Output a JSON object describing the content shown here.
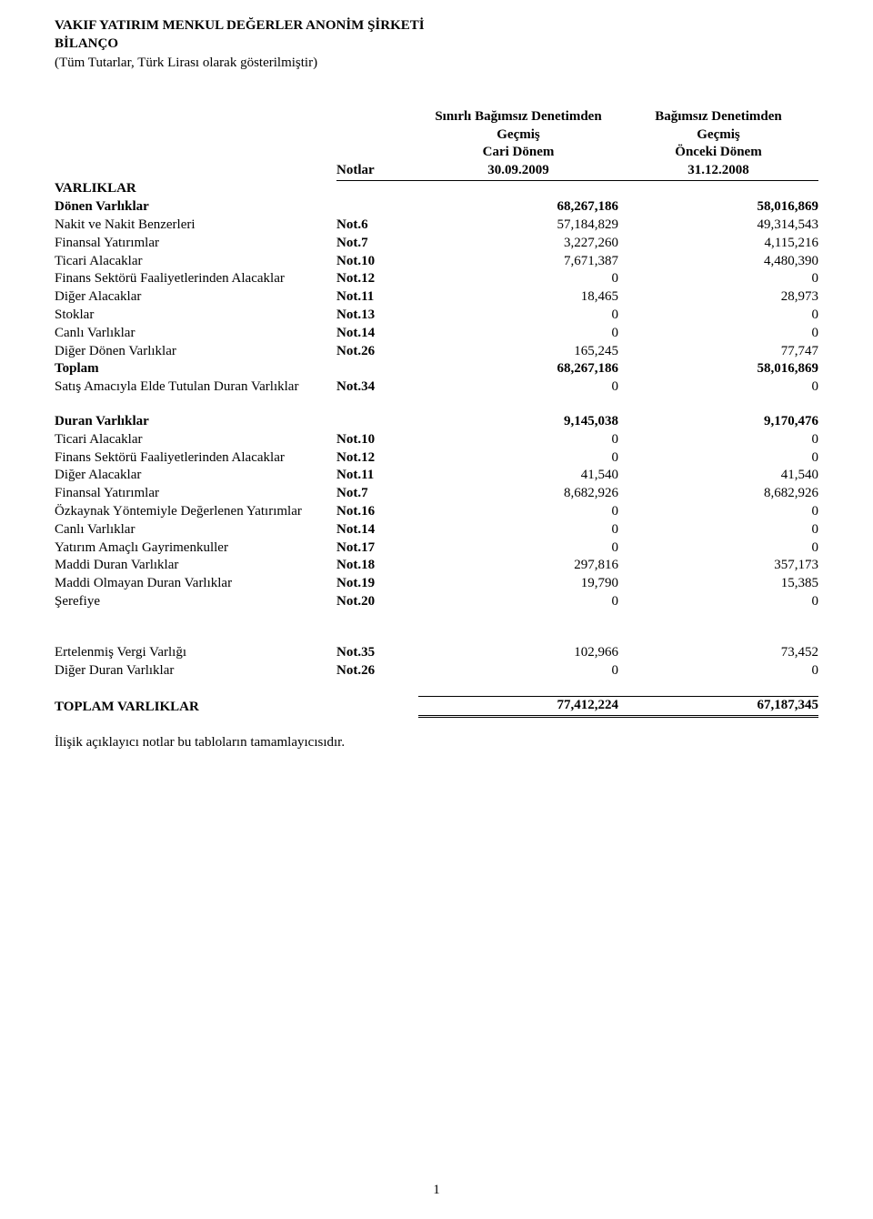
{
  "header": {
    "company": "VAKIF YATIRIM MENKUL DEĞERLER ANONİM ŞİRKETİ",
    "report": "BİLANÇO",
    "note": "(Tüm Tutarlar, Türk Lirası olarak gösterilmiştir)"
  },
  "columns": {
    "notes_label": "Notlar",
    "col1_l1": "Sınırlı Bağımsız Denetimden",
    "col1_l2": "Geçmiş",
    "col1_l3": "Cari Dönem",
    "col1_l4": "30.09.2009",
    "col2_l1": "Bağımsız Denetimden",
    "col2_l2": "Geçmiş",
    "col2_l3": "Önceki Dönem",
    "col2_l4": "31.12.2008"
  },
  "section_varliklar": "VARLIKLAR",
  "donen": {
    "title": "Dönen Varlıklar",
    "title_v1": "68,267,186",
    "title_v2": "58,016,869",
    "rows": [
      {
        "d": "Nakit ve Nakit Benzerleri",
        "n": "Not.6",
        "v1": "57,184,829",
        "v2": "49,314,543"
      },
      {
        "d": "Finansal Yatırımlar",
        "n": "Not.7",
        "v1": "3,227,260",
        "v2": "4,115,216"
      },
      {
        "d": "Ticari Alacaklar",
        "n": "Not.10",
        "v1": "7,671,387",
        "v2": "4,480,390"
      },
      {
        "d": "Finans Sektörü Faaliyetlerinden Alacaklar",
        "n": "Not.12",
        "v1": "0",
        "v2": "0"
      },
      {
        "d": "Diğer Alacaklar",
        "n": "Not.11",
        "v1": "18,465",
        "v2": "28,973"
      },
      {
        "d": "Stoklar",
        "n": "Not.13",
        "v1": "0",
        "v2": "0"
      },
      {
        "d": "Canlı Varlıklar",
        "n": "Not.14",
        "v1": "0",
        "v2": "0"
      },
      {
        "d": "Diğer Dönen Varlıklar",
        "n": "Not.26",
        "v1": "165,245",
        "v2": "77,747"
      }
    ],
    "toplam": {
      "d": "Toplam",
      "v1": "68,267,186",
      "v2": "58,016,869"
    },
    "satis": {
      "d": "Satış Amacıyla Elde Tutulan Duran Varlıklar",
      "n": "Not.34",
      "v1": "0",
      "v2": "0"
    }
  },
  "duran": {
    "title": "Duran Varlıklar",
    "title_v1": "9,145,038",
    "title_v2": "9,170,476",
    "rows": [
      {
        "d": "Ticari Alacaklar",
        "n": "Not.10",
        "v1": "0",
        "v2": "0"
      },
      {
        "d": "Finans Sektörü Faaliyetlerinden Alacaklar",
        "n": "Not.12",
        "v1": "0",
        "v2": "0"
      },
      {
        "d": "Diğer Alacaklar",
        "n": "Not.11",
        "v1": "41,540",
        "v2": "41,540"
      },
      {
        "d": "Finansal Yatırımlar",
        "n": "Not.7",
        "v1": "8,682,926",
        "v2": "8,682,926"
      },
      {
        "d": "Özkaynak Yöntemiyle Değerlenen Yatırımlar",
        "n": "Not.16",
        "v1": "0",
        "v2": "0"
      },
      {
        "d": "Canlı Varlıklar",
        "n": "Not.14",
        "v1": "0",
        "v2": "0"
      },
      {
        "d": "Yatırım Amaçlı Gayrimenkuller",
        "n": "Not.17",
        "v1": "0",
        "v2": "0"
      },
      {
        "d": "Maddi Duran Varlıklar",
        "n": "Not.18",
        "v1": "297,816",
        "v2": "357,173"
      },
      {
        "d": "Maddi Olmayan Duran Varlıklar",
        "n": "Not.19",
        "v1": "19,790",
        "v2": "15,385"
      },
      {
        "d": "Şerefiye",
        "n": "Not.20",
        "v1": "0",
        "v2": "0"
      }
    ]
  },
  "other": {
    "rows": [
      {
        "d": "Ertelenmiş Vergi Varlığı",
        "n": "Not.35",
        "v1": "102,966",
        "v2": "73,452"
      },
      {
        "d": "Diğer Duran Varlıklar",
        "n": "Not.26",
        "v1": "0",
        "v2": "0"
      }
    ]
  },
  "total": {
    "d": "TOPLAM VARLIKLAR",
    "v1": "77,412,224",
    "v2": "67,187,345"
  },
  "footer": "İlişik açıklayıcı notlar bu tabloların tamamlayıcısıdır.",
  "page_number": "1"
}
